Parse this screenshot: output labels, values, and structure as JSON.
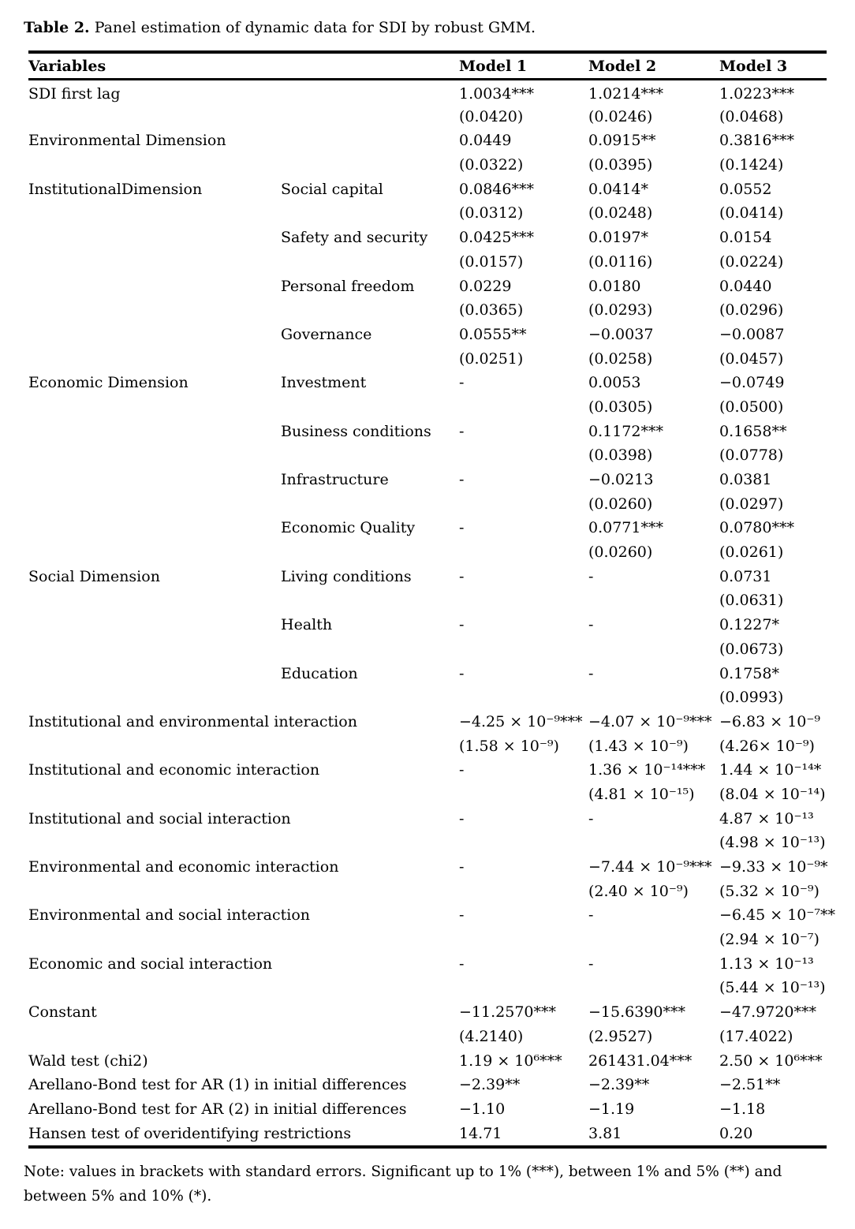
{
  "caption": {
    "label": "Table 2.",
    "text": " Panel estimation of dynamic data for SDI by robust GMM."
  },
  "table": {
    "headers": [
      "Variables",
      "",
      "Model 1",
      "Model 2",
      "Model 3"
    ],
    "rows": [
      {
        "variable": "SDI first lag",
        "sub": "",
        "m1": [
          "1.0034***",
          "(0.0420)"
        ],
        "m2": [
          "1.0214***",
          "(0.0246)"
        ],
        "m3": [
          "1.0223***",
          "(0.0468)"
        ]
      },
      {
        "variable": "Environmental Dimension",
        "sub": "",
        "m1": [
          "0.0449",
          "(0.0322)"
        ],
        "m2": [
          "0.0915**",
          "(0.0395)"
        ],
        "m3": [
          "0.3816***",
          "(0.1424)"
        ]
      },
      {
        "variable": "InstitutionalDimension",
        "sub": "Social capital",
        "m1": [
          "0.0846***",
          "(0.0312)"
        ],
        "m2": [
          "0.0414*",
          "(0.0248)"
        ],
        "m3": [
          "0.0552",
          "(0.0414)"
        ]
      },
      {
        "variable": "",
        "sub": "Safety and security",
        "m1": [
          "0.0425***",
          "(0.0157)"
        ],
        "m2": [
          "0.0197*",
          "(0.0116)"
        ],
        "m3": [
          "0.0154",
          "(0.0224)"
        ]
      },
      {
        "variable": "",
        "sub": "Personal freedom",
        "m1": [
          "0.0229",
          "(0.0365)"
        ],
        "m2": [
          "0.0180",
          "(0.0293)"
        ],
        "m3": [
          "0.0440",
          "(0.0296)"
        ]
      },
      {
        "variable": "",
        "sub": "Governance",
        "m1": [
          "0.0555**",
          "(0.0251)"
        ],
        "m2": [
          "−0.0037",
          "(0.0258)"
        ],
        "m3": [
          "−0.0087",
          "(0.0457)"
        ]
      },
      {
        "variable": "Economic Dimension",
        "sub": "Investment",
        "m1": [
          "-"
        ],
        "m2": [
          "0.0053",
          "(0.0305)"
        ],
        "m3": [
          "−0.0749",
          "(0.0500)"
        ]
      },
      {
        "variable": "",
        "sub": "Business conditions",
        "m1": [
          "-"
        ],
        "m2": [
          "0.1172***",
          "(0.0398)"
        ],
        "m3": [
          "0.1658**",
          "(0.0778)"
        ]
      },
      {
        "variable": "",
        "sub": "Infrastructure",
        "m1": [
          "-"
        ],
        "m2": [
          "−0.0213",
          "(0.0260)"
        ],
        "m3": [
          "0.0381",
          "(0.0297)"
        ]
      },
      {
        "variable": "",
        "sub": "Economic Quality",
        "m1": [
          "-"
        ],
        "m2": [
          "0.0771***",
          "(0.0260)"
        ],
        "m3": [
          "0.0780***",
          "(0.0261)"
        ]
      },
      {
        "variable": "Social Dimension",
        "sub": "Living conditions",
        "m1": [
          "-"
        ],
        "m2": [
          "-"
        ],
        "m3": [
          "0.0731",
          "(0.0631)"
        ]
      },
      {
        "variable": "",
        "sub": "Health",
        "m1": [
          "-"
        ],
        "m2": [
          "-"
        ],
        "m3": [
          "0.1227*",
          "(0.0673)"
        ]
      },
      {
        "variable": "",
        "sub": "Education",
        "m1": [
          "-"
        ],
        "m2": [
          "-"
        ],
        "m3": [
          "0.1758*",
          "(0.0993)"
        ]
      },
      {
        "variable": "Institutional and environmental interaction",
        "sub": "",
        "m1": [
          "−4.25 × 10⁻⁹***",
          "(1.58 × 10⁻⁹)"
        ],
        "m2": [
          "−4.07 × 10⁻⁹***",
          "(1.43 × 10⁻⁹)"
        ],
        "m3": [
          "−6.83 × 10⁻⁹",
          "(4.26× 10⁻⁹)"
        ]
      },
      {
        "variable": "Institutional and economic interaction",
        "sub": "",
        "m1": [
          "-"
        ],
        "m2": [
          "1.36 × 10⁻¹⁴***",
          "(4.81 × 10⁻¹⁵)"
        ],
        "m3": [
          "1.44 × 10⁻¹⁴*",
          "(8.04 × 10⁻¹⁴)"
        ]
      },
      {
        "variable": "Institutional and social interaction",
        "sub": "",
        "m1": [
          "-"
        ],
        "m2": [
          "-"
        ],
        "m3": [
          "4.87 × 10⁻¹³",
          "(4.98 × 10⁻¹³)"
        ]
      },
      {
        "variable": "Environmental and economic interaction",
        "sub": "",
        "m1": [
          "-"
        ],
        "m2": [
          "−7.44 × 10⁻⁹***",
          "(2.40 × 10⁻⁹)"
        ],
        "m3": [
          "−9.33 × 10⁻⁹*",
          "(5.32 × 10⁻⁹)"
        ]
      },
      {
        "variable": "Environmental and social interaction",
        "sub": "",
        "m1": [
          "-"
        ],
        "m2": [
          "-"
        ],
        "m3": [
          "−6.45 × 10⁻⁷**",
          "(2.94 × 10⁻⁷)"
        ]
      },
      {
        "variable": "Economic and social interaction",
        "sub": "",
        "m1": [
          "-"
        ],
        "m2": [
          "-"
        ],
        "m3": [
          "1.13 × 10⁻¹³",
          "(5.44 × 10⁻¹³)"
        ]
      },
      {
        "variable": "Constant",
        "sub": "",
        "m1": [
          "−11.2570***",
          "(4.2140)"
        ],
        "m2": [
          "−15.6390***",
          "(2.9527)"
        ],
        "m3": [
          "−47.9720***",
          "(17.4022)"
        ]
      },
      {
        "variable": "Wald test (chi2)",
        "sub": "",
        "m1": [
          "1.19 × 10⁶***"
        ],
        "m2": [
          "261431.04***"
        ],
        "m3": [
          "2.50 × 10⁶***"
        ]
      },
      {
        "variable": "Arellano-Bond test for AR (1) in initial differences",
        "sub": "",
        "m1": [
          "−2.39**"
        ],
        "m2": [
          "−2.39**"
        ],
        "m3": [
          "−2.51**"
        ]
      },
      {
        "variable": "Arellano-Bond test for AR (2) in initial differences",
        "sub": "",
        "m1": [
          "−1.10"
        ],
        "m2": [
          "−1.19"
        ],
        "m3": [
          "−1.18"
        ]
      },
      {
        "variable": "Hansen test of overidentifying restrictions",
        "sub": "",
        "m1": [
          "14.71"
        ],
        "m2": [
          "3.81"
        ],
        "m3": [
          "0.20"
        ]
      }
    ]
  },
  "note": {
    "text": "Note: values in brackets with standard errors. Significant up to 1% (***), between 1% and 5% (**) and between 5% and 10% (*)."
  },
  "colors": {
    "text": "#000000",
    "border": "#000000",
    "background": "#ffffff"
  }
}
